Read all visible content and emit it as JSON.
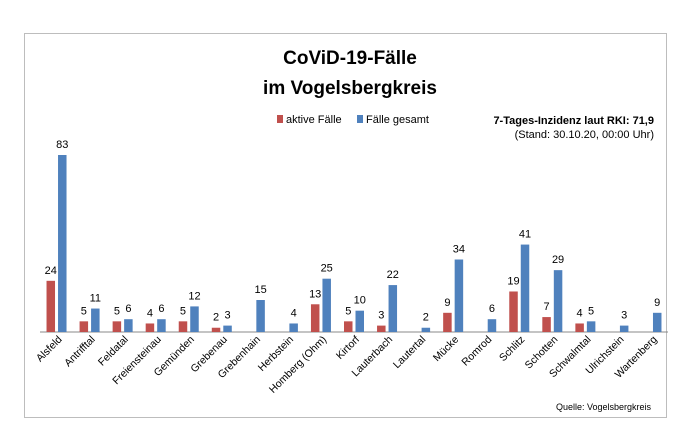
{
  "chart_data": {
    "type": "bar",
    "title_line1": "CoViD-19-Fälle",
    "title_line2": "im Vogelsbergkreis",
    "info_line1": "7-Tages-Inzidenz laut RKI: 71,9",
    "info_line2": "(Stand: 30.10.20, 00:00 Uhr)",
    "source": "Quelle: Vogelsbergkreis",
    "legend_position": "top-center",
    "grid": false,
    "xlabel": "",
    "ylabel": "",
    "ylim": [
      0,
      83
    ],
    "categories": [
      "Alsfeld",
      "Antrifftal",
      "Feldatal",
      "Freiensteinau",
      "Gemünden",
      "Grebenau",
      "Grebenhain",
      "Herbstein",
      "Homberg (Ohm)",
      "Kirtorf",
      "Lauterbach",
      "Lautertal",
      "Mücke",
      "Romrod",
      "Schlitz",
      "Schotten",
      "Schwalmtal",
      "Ulrichstein",
      "Wartenberg"
    ],
    "series": [
      {
        "name": "aktive Fälle",
        "color": "#c0504d",
        "values": [
          24,
          5,
          5,
          4,
          5,
          2,
          null,
          null,
          13,
          5,
          3,
          null,
          9,
          null,
          19,
          7,
          4,
          null,
          null
        ]
      },
      {
        "name": "Fälle gesamt",
        "color": "#4f81bd",
        "values": [
          83,
          11,
          6,
          6,
          12,
          3,
          15,
          4,
          25,
          10,
          22,
          2,
          34,
          6,
          41,
          29,
          5,
          3,
          9
        ]
      }
    ]
  }
}
